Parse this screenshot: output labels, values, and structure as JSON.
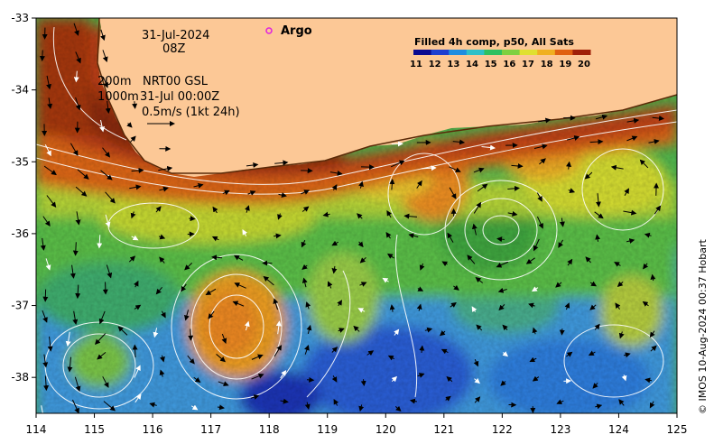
{
  "map": {
    "lon_ticks": [
      "114",
      "115",
      "116",
      "117",
      "118",
      "119",
      "120",
      "121",
      "122",
      "123",
      "124",
      "125"
    ],
    "lat_ticks": [
      "-33",
      "-34",
      "-35",
      "-36",
      "-37",
      "-38"
    ],
    "lon_range": [
      114,
      125
    ],
    "lat_range": [
      -38.5,
      -33
    ]
  },
  "annotations": {
    "date": "31-Jul-2024",
    "time": "08Z",
    "depth_200": "200m",
    "depth_1000": "1000m",
    "nrt_label": "NRT00 GSL",
    "nrt_time": "31-Jul 00:00Z",
    "scale_label": "0.5m/s (1kt 24h)"
  },
  "legend": {
    "argo_label": "Argo",
    "colorbar_title": "Filled 4h comp, p50, All Sats",
    "colorbar_values": [
      "11",
      "12",
      "13",
      "14",
      "15",
      "16",
      "17",
      "18",
      "19",
      "20"
    ],
    "colorbar_colors": [
      "#0a0a90",
      "#1e3fd0",
      "#1f8de0",
      "#30c0c8",
      "#30c060",
      "#7fd040",
      "#e0e030",
      "#f0b020",
      "#e06010",
      "#a02008"
    ]
  },
  "credit": "© IMOS 10-Aug-2024 00:37 Hobart",
  "colors": {
    "land": "#fcc896",
    "argo_marker": "#e020e0"
  }
}
